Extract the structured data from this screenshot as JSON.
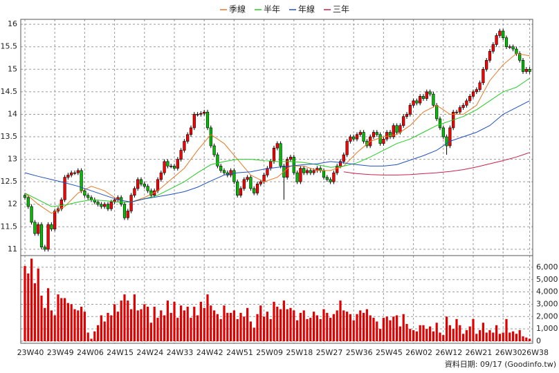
{
  "chart_data": {
    "type": "candlestick",
    "legend": "top",
    "grid": true,
    "footnote": "資料日期: 09/17  (Goodinfo.tw)",
    "up_color": "#ff0000",
    "down_color": "#00c000",
    "ylim": [
      10.86,
      16.11
    ],
    "yticks": [
      11,
      11.5,
      12,
      12.5,
      13,
      13.5,
      14,
      14.5,
      15,
      15.5,
      16
    ],
    "categories": [
      "23W40",
      null,
      null,
      null,
      null,
      null,
      null,
      null,
      null,
      "23W49",
      null,
      null,
      null,
      null,
      null,
      null,
      null,
      null,
      "24W06",
      null,
      null,
      null,
      null,
      null,
      null,
      null,
      null,
      "24W15",
      null,
      null,
      null,
      null,
      null,
      null,
      null,
      null,
      "24W24",
      null,
      null,
      null,
      null,
      null,
      null,
      null,
      null,
      "24W33",
      null,
      null,
      null,
      null,
      null,
      null,
      null,
      null,
      "24W42",
      null,
      null,
      null,
      null,
      null,
      null,
      null,
      null,
      "24W51",
      null,
      null,
      null,
      null,
      null,
      null,
      null,
      null,
      "25W09",
      null,
      null,
      null,
      null,
      null,
      null,
      null,
      null,
      "25W18",
      null,
      null,
      null,
      null,
      null,
      null,
      null,
      null,
      "25W27",
      null,
      null,
      null,
      null,
      null,
      null,
      null,
      null,
      "25W36",
      null,
      null,
      null,
      null,
      null,
      null,
      null,
      null,
      "25W45",
      null,
      null,
      null,
      null,
      null,
      null,
      null,
      null,
      "26W02",
      null,
      null,
      null,
      null,
      null,
      null,
      null,
      null,
      "26W12",
      null,
      null,
      null,
      null,
      null,
      null,
      null,
      null,
      "26W21",
      null,
      null,
      null,
      null,
      null,
      null,
      null,
      null,
      "26W30",
      null,
      null,
      null,
      null,
      null,
      null,
      null,
      "26W38"
    ],
    "open": [
      12.2,
      12.15,
      11.95,
      11.6,
      11.35,
      11.55,
      11.05,
      11.0,
      11.55,
      11.45,
      11.85,
      11.9,
      12.1,
      12.6,
      12.65,
      12.7,
      12.7,
      12.75,
      12.3,
      12.2,
      12.15,
      12.1,
      12.05,
      12.0,
      11.95,
      12.0,
      11.9,
      12.05,
      12.1,
      12.15,
      12.0,
      11.7,
      11.85,
      12.2,
      12.35,
      12.55,
      12.45,
      12.4,
      12.3,
      12.2,
      12.3,
      12.55,
      12.7,
      12.95,
      12.85,
      12.85,
      12.8,
      13.0,
      13.2,
      13.4,
      13.55,
      13.7,
      14.0,
      14.0,
      14.02,
      14.05,
      13.7,
      13.3,
      13.1,
      12.85,
      12.75,
      12.7,
      12.65,
      12.75,
      12.5,
      12.2,
      12.35,
      12.55,
      12.6,
      12.35,
      12.25,
      12.45,
      12.5,
      12.65,
      12.8,
      12.95,
      13.25,
      13.35,
      12.85,
      12.6,
      13.0,
      13.05,
      12.7,
      12.5,
      12.8,
      12.7,
      12.75,
      12.7,
      12.75,
      12.8,
      12.75,
      12.6,
      12.55,
      12.5,
      12.7,
      12.85,
      12.95,
      13.1,
      13.4,
      13.5,
      13.45,
      13.55,
      13.6,
      13.4,
      13.3,
      13.5,
      13.6,
      13.55,
      13.35,
      13.45,
      13.6,
      13.5,
      13.75,
      13.6,
      13.75,
      13.95,
      14.0,
      14.2,
      14.3,
      14.25,
      14.4,
      14.35,
      14.5,
      14.45,
      14.2,
      13.9,
      13.7,
      13.5,
      13.3,
      13.7,
      14.05,
      14.05,
      14.15,
      14.2,
      14.3,
      14.4,
      14.5,
      14.55,
      14.7,
      15.0,
      15.2,
      15.4,
      15.55,
      15.75,
      15.85,
      15.7,
      15.5,
      15.5,
      15.45,
      15.35,
      15.2,
      14.95,
      15.0
    ],
    "high": [
      12.25,
      12.2,
      12.0,
      11.65,
      11.6,
      11.6,
      11.1,
      11.6,
      11.6,
      11.9,
      11.95,
      12.15,
      12.65,
      12.7,
      12.75,
      12.75,
      12.8,
      12.8,
      12.35,
      12.25,
      12.2,
      12.15,
      12.1,
      12.05,
      12.05,
      12.05,
      12.1,
      12.15,
      12.2,
      12.2,
      12.05,
      11.9,
      12.25,
      12.4,
      12.6,
      12.6,
      12.5,
      12.45,
      12.35,
      12.35,
      12.6,
      12.75,
      13.0,
      13.0,
      12.9,
      12.9,
      13.05,
      13.25,
      13.45,
      13.6,
      13.75,
      14.05,
      14.05,
      14.07,
      14.1,
      14.1,
      13.75,
      13.35,
      13.15,
      12.9,
      12.8,
      12.75,
      12.8,
      12.8,
      12.55,
      12.4,
      12.6,
      12.65,
      12.65,
      12.4,
      12.5,
      12.55,
      12.7,
      12.85,
      13.0,
      13.3,
      13.4,
      13.4,
      12.9,
      13.05,
      13.1,
      13.1,
      12.75,
      12.85,
      12.85,
      12.8,
      12.8,
      12.8,
      12.85,
      12.85,
      12.8,
      12.65,
      12.6,
      12.75,
      12.9,
      13.0,
      13.15,
      13.45,
      13.55,
      13.55,
      13.6,
      13.65,
      13.65,
      13.45,
      13.55,
      13.65,
      13.65,
      13.6,
      13.5,
      13.65,
      13.65,
      13.8,
      13.8,
      13.8,
      14.0,
      14.05,
      14.25,
      14.35,
      14.35,
      14.45,
      14.45,
      14.55,
      14.55,
      14.5,
      14.25,
      13.95,
      13.75,
      13.55,
      13.75,
      14.1,
      14.1,
      14.2,
      14.25,
      14.35,
      14.45,
      14.55,
      14.6,
      14.75,
      15.05,
      15.25,
      15.45,
      15.6,
      15.8,
      15.9,
      15.9,
      15.75,
      15.55,
      15.55,
      15.5,
      15.4,
      15.25,
      15.05,
      15.05
    ],
    "low": [
      12.1,
      11.9,
      11.55,
      11.3,
      11.3,
      11.0,
      10.95,
      10.95,
      11.4,
      11.4,
      11.8,
      11.85,
      12.05,
      12.55,
      12.6,
      12.65,
      12.65,
      12.25,
      12.15,
      12.1,
      12.05,
      12.0,
      11.95,
      11.9,
      11.9,
      11.85,
      11.85,
      12.0,
      12.05,
      11.95,
      11.65,
      11.65,
      11.8,
      12.15,
      12.3,
      12.4,
      12.35,
      12.25,
      12.15,
      12.15,
      12.25,
      12.5,
      12.65,
      12.8,
      12.8,
      12.75,
      12.75,
      12.95,
      13.15,
      13.35,
      13.5,
      13.65,
      13.95,
      13.95,
      13.97,
      13.65,
      13.25,
      13.05,
      12.8,
      12.7,
      12.65,
      12.6,
      12.6,
      12.45,
      12.15,
      12.15,
      12.3,
      12.5,
      12.3,
      12.2,
      12.2,
      12.4,
      12.45,
      12.6,
      12.75,
      12.9,
      13.2,
      12.8,
      12.1,
      12.55,
      12.95,
      12.65,
      12.45,
      12.45,
      12.65,
      12.65,
      12.65,
      12.65,
      12.7,
      12.7,
      12.55,
      12.5,
      12.45,
      12.45,
      12.65,
      12.8,
      12.9,
      13.05,
      13.35,
      13.4,
      13.4,
      13.5,
      13.35,
      13.25,
      13.25,
      13.45,
      13.5,
      13.3,
      13.3,
      13.4,
      13.45,
      13.45,
      13.55,
      13.55,
      13.7,
      13.9,
      13.95,
      14.15,
      14.2,
      14.2,
      14.3,
      14.3,
      14.4,
      14.15,
      13.85,
      13.65,
      13.45,
      13.1,
      13.25,
      13.65,
      14.0,
      14.0,
      14.1,
      14.15,
      14.25,
      14.35,
      14.45,
      14.5,
      14.65,
      14.95,
      15.15,
      15.35,
      15.5,
      15.7,
      15.65,
      15.45,
      15.45,
      15.4,
      15.3,
      15.15,
      14.9,
      14.9,
      14.9
    ],
    "close": [
      12.15,
      11.95,
      11.6,
      11.35,
      11.55,
      11.05,
      11.0,
      11.55,
      11.45,
      11.85,
      11.9,
      12.1,
      12.6,
      12.65,
      12.7,
      12.7,
      12.75,
      12.3,
      12.2,
      12.15,
      12.1,
      12.05,
      12.0,
      11.95,
      12.0,
      11.9,
      12.05,
      12.1,
      12.15,
      12.0,
      11.7,
      11.85,
      12.2,
      12.35,
      12.55,
      12.45,
      12.4,
      12.3,
      12.2,
      12.3,
      12.55,
      12.7,
      12.95,
      12.85,
      12.85,
      12.8,
      13.0,
      13.2,
      13.4,
      13.55,
      13.7,
      14.0,
      14.0,
      14.02,
      14.05,
      13.7,
      13.3,
      13.1,
      12.85,
      12.75,
      12.7,
      12.65,
      12.75,
      12.5,
      12.2,
      12.35,
      12.55,
      12.6,
      12.35,
      12.25,
      12.45,
      12.5,
      12.65,
      12.8,
      12.95,
      13.25,
      13.35,
      12.85,
      12.6,
      13.0,
      13.05,
      12.7,
      12.5,
      12.8,
      12.7,
      12.75,
      12.7,
      12.75,
      12.8,
      12.75,
      12.6,
      12.55,
      12.5,
      12.7,
      12.85,
      12.95,
      13.1,
      13.4,
      13.5,
      13.45,
      13.55,
      13.6,
      13.4,
      13.3,
      13.5,
      13.6,
      13.55,
      13.35,
      13.45,
      13.6,
      13.5,
      13.75,
      13.6,
      13.75,
      13.95,
      14.0,
      14.2,
      14.3,
      14.25,
      14.4,
      14.35,
      14.5,
      14.45,
      14.2,
      13.9,
      13.7,
      13.5,
      13.3,
      13.7,
      14.05,
      14.05,
      14.15,
      14.2,
      14.3,
      14.4,
      14.5,
      14.55,
      14.7,
      15.0,
      15.2,
      15.4,
      15.55,
      15.75,
      15.85,
      15.7,
      15.5,
      15.5,
      15.45,
      15.35,
      15.2,
      14.95,
      15.0,
      14.95
    ],
    "series": [
      {
        "name": "季線",
        "color": "#e87722",
        "x": [
          0,
          4,
          8,
          12,
          16,
          20,
          24,
          28,
          32,
          36,
          40,
          44,
          48,
          52,
          56,
          60,
          64,
          68,
          72,
          76,
          80,
          84,
          88,
          92,
          96,
          100,
          104,
          108,
          112,
          116,
          120,
          124,
          128,
          132,
          136,
          140,
          144,
          148,
          152
        ],
        "values": [
          12.25,
          12.0,
          11.8,
          11.95,
          12.25,
          12.4,
          12.3,
          12.1,
          12.05,
          12.15,
          12.3,
          12.55,
          12.8,
          13.2,
          13.55,
          13.35,
          13.0,
          12.65,
          12.5,
          12.6,
          12.85,
          12.85,
          12.75,
          12.75,
          12.85,
          13.15,
          13.4,
          13.5,
          13.55,
          13.75,
          14.05,
          14.2,
          14.0,
          14.0,
          14.2,
          14.75,
          15.1,
          15.35,
          15.3
        ]
      },
      {
        "name": "半年",
        "color": "#22cc22",
        "x": [
          0,
          4,
          8,
          12,
          16,
          20,
          24,
          28,
          32,
          36,
          40,
          44,
          48,
          52,
          56,
          60,
          64,
          68,
          72,
          76,
          80,
          84,
          88,
          92,
          96,
          100,
          104,
          108,
          112,
          116,
          120,
          124,
          128,
          132,
          136,
          140,
          144,
          148,
          152
        ],
        "values": [
          12.25,
          12.1,
          11.95,
          11.98,
          12.05,
          12.1,
          12.08,
          12.05,
          12.05,
          12.12,
          12.2,
          12.35,
          12.5,
          12.7,
          12.88,
          12.95,
          13.0,
          13.0,
          12.97,
          12.95,
          12.95,
          12.93,
          12.88,
          12.82,
          12.85,
          12.92,
          13.05,
          13.2,
          13.35,
          13.45,
          13.6,
          13.75,
          13.85,
          13.95,
          14.1,
          14.3,
          14.5,
          14.6,
          14.8
        ]
      },
      {
        "name": "年線",
        "color": "#1f4fbf",
        "x": [
          0,
          4,
          8,
          12,
          16,
          20,
          24,
          28,
          32,
          36,
          40,
          44,
          48,
          52,
          56,
          60,
          64,
          68,
          72,
          76,
          80,
          84,
          88,
          92,
          96,
          100,
          104,
          108,
          112,
          116,
          120,
          124,
          128,
          132,
          136,
          140,
          144,
          148,
          152
        ],
        "values": [
          12.7,
          12.62,
          12.55,
          12.48,
          12.4,
          12.3,
          12.2,
          12.1,
          12.05,
          12.12,
          12.17,
          12.22,
          12.28,
          12.38,
          12.52,
          12.65,
          12.7,
          12.72,
          12.78,
          12.82,
          12.85,
          12.88,
          12.9,
          12.95,
          12.92,
          12.88,
          12.85,
          12.85,
          12.88,
          12.98,
          13.08,
          13.2,
          13.4,
          13.5,
          13.6,
          13.75,
          14.0,
          14.15,
          14.3
        ]
      },
      {
        "name": "三年",
        "color": "#c8204a",
        "x": [
          96,
          100,
          104,
          108,
          112,
          116,
          120,
          124,
          128,
          132,
          136,
          140,
          144,
          148,
          152
        ],
        "values": [
          12.72,
          12.68,
          12.66,
          12.65,
          12.65,
          12.66,
          12.68,
          12.7,
          12.73,
          12.77,
          12.83,
          12.9,
          12.97,
          13.05,
          13.15
        ]
      }
    ],
    "volume": {
      "color": "#e00000",
      "ylim": [
        0,
        6500
      ],
      "yticks": [
        0,
        {
          "value": 1000,
          "label": "1,000"
        },
        {
          "value": 2000,
          "label": "2,000"
        },
        {
          "value": 3000,
          "label": "3,000"
        },
        {
          "value": 4000,
          "label": "4,000"
        },
        {
          "value": 5000,
          "label": "5,000"
        },
        {
          "value": 6000,
          "label": "6,000"
        }
      ],
      "values": [
        6100,
        5500,
        6700,
        4700,
        5900,
        3700,
        2700,
        4300,
        2500,
        2100,
        3800,
        3500,
        3500,
        3100,
        3000,
        2600,
        2500,
        2800,
        2400,
        700,
        200,
        800,
        1300,
        2100,
        1600,
        2300,
        2100,
        3000,
        2400,
        3300,
        3800,
        3300,
        2600,
        3800,
        2500,
        2600,
        3000,
        2800,
        1500,
        2800,
        1900,
        2500,
        2100,
        3300,
        2300,
        3200,
        1900,
        2900,
        2500,
        2800,
        1900,
        2800,
        2100,
        3200,
        2700,
        3800,
        2900,
        2500,
        2200,
        1800,
        2900,
        2300,
        2300,
        2500,
        1800,
        2300,
        2000,
        2700,
        1600,
        1100,
        2200,
        2900,
        2000,
        2400,
        1800,
        3200,
        2800,
        2600,
        3300,
        2600,
        2700,
        2500,
        1700,
        2300,
        2500,
        1800,
        1900,
        2400,
        2100,
        1800,
        2600,
        2300,
        1900,
        2200,
        2500,
        3300,
        2500,
        2400,
        2200,
        1700,
        2200,
        2500,
        2300,
        2600,
        2100,
        1900,
        1600,
        1000,
        1900,
        2000,
        1700,
        2000,
        2100,
        1200,
        2200,
        1400,
        1000,
        900,
        800,
        1300,
        1300,
        1000,
        1200,
        800,
        1500,
        700,
        500,
        2000,
        1300,
        1000,
        1800,
        1300,
        600,
        900,
        1200,
        1800,
        600,
        900,
        1500,
        700,
        900,
        700,
        1300,
        600,
        700,
        1800,
        700,
        800,
        600,
        900,
        400,
        300,
        200
      ]
    }
  }
}
